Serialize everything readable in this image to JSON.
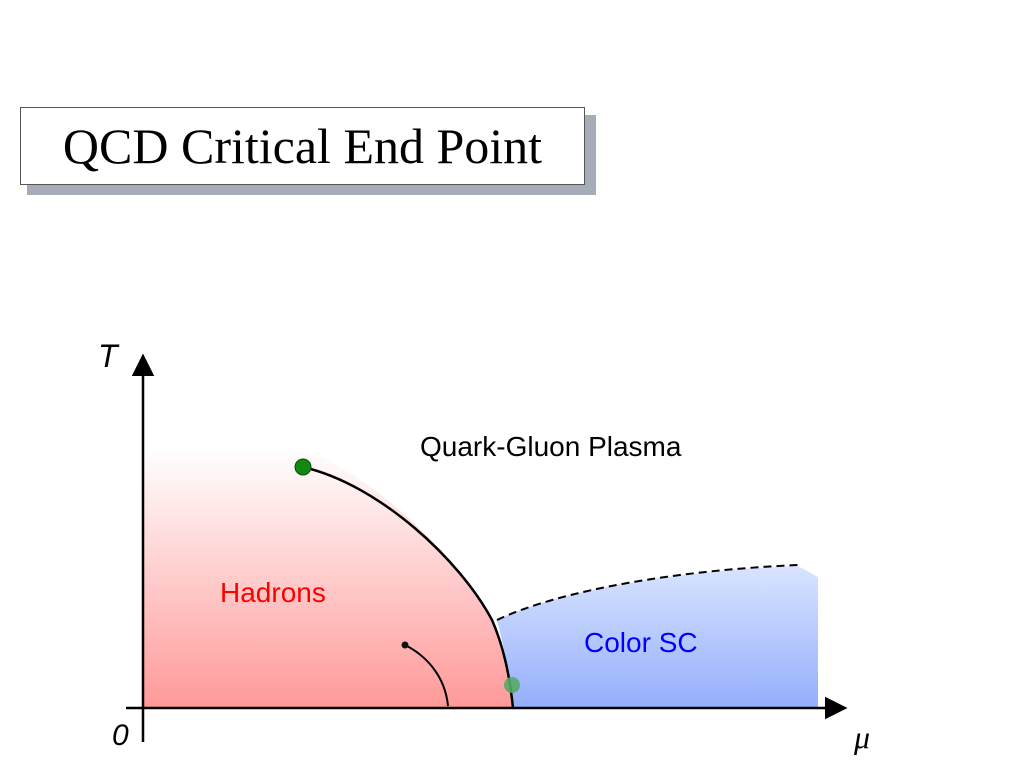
{
  "slide": {
    "title": "QCD Critical End Point"
  },
  "diagram": {
    "axes": {
      "y_label": "T",
      "x_label": "μ",
      "origin_label": "0"
    },
    "regions": {
      "qgp_label": "Quark-Gluon Plasma",
      "hadrons_label": "Hadrons",
      "color_sc_label": "Color SC"
    },
    "colors": {
      "hadrons_fill": "#ff9999",
      "color_sc_fill": "#99b3ff",
      "hadrons_text": "#ff0000",
      "color_sc_text": "#0000ff",
      "critical_point": "#118811",
      "boundary_line": "#000000"
    }
  }
}
